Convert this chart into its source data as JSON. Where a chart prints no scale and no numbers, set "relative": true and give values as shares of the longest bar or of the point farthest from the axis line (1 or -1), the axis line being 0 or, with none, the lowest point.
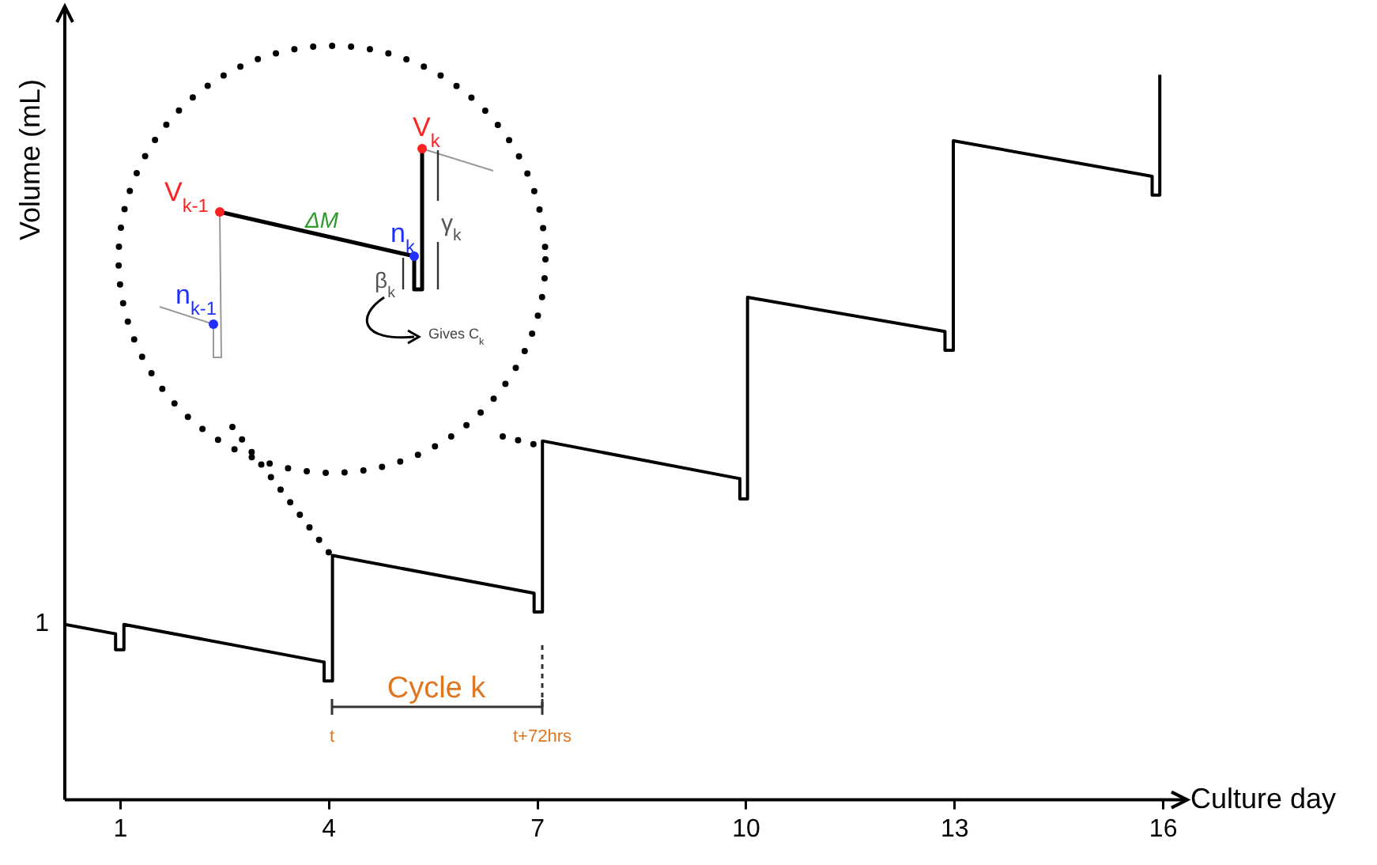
{
  "chart_data": {
    "type": "line",
    "relative": true,
    "xlabel": "Culture day",
    "ylabel": "Volume (mL)",
    "xlim": [
      0.2,
      16.3
    ],
    "xticks": [
      1,
      4,
      7,
      10,
      13,
      16
    ],
    "marker": "none",
    "line_style": "solid",
    "x": [
      0.2,
      0.93,
      0.93,
      1.05,
      1.05,
      3.93,
      3.93,
      4.05,
      4.05,
      6.95,
      6.95,
      7.07,
      7.07,
      9.91,
      9.91,
      10.02,
      10.02,
      12.86,
      12.86,
      12.98,
      12.98,
      15.84,
      15.84,
      15.95,
      15.95
    ],
    "series": [
      {
        "color": "#000000",
        "values": [
          0.242,
          0.229,
          0.207,
          0.207,
          0.242,
          0.19,
          0.164,
          0.164,
          0.337,
          0.285,
          0.259,
          0.259,
          0.495,
          0.443,
          0.415,
          0.415,
          0.693,
          0.646,
          0.62,
          0.62,
          0.909,
          0.86,
          0.834,
          0.834,
          1
        ]
      }
    ],
    "annotations": [
      {
        "text": "1",
        "x": 0.2,
        "y": 0.242
      },
      "Cycle k",
      "t",
      "t+72hrs",
      "V$_{k-1}$",
      "n$_{k-1}$",
      "ΔM",
      "n$_{k}$",
      "V$_{k}$",
      "γ$_{k}$",
      "β$_{k}$",
      "Gives C$_{k}$"
    ]
  }
}
